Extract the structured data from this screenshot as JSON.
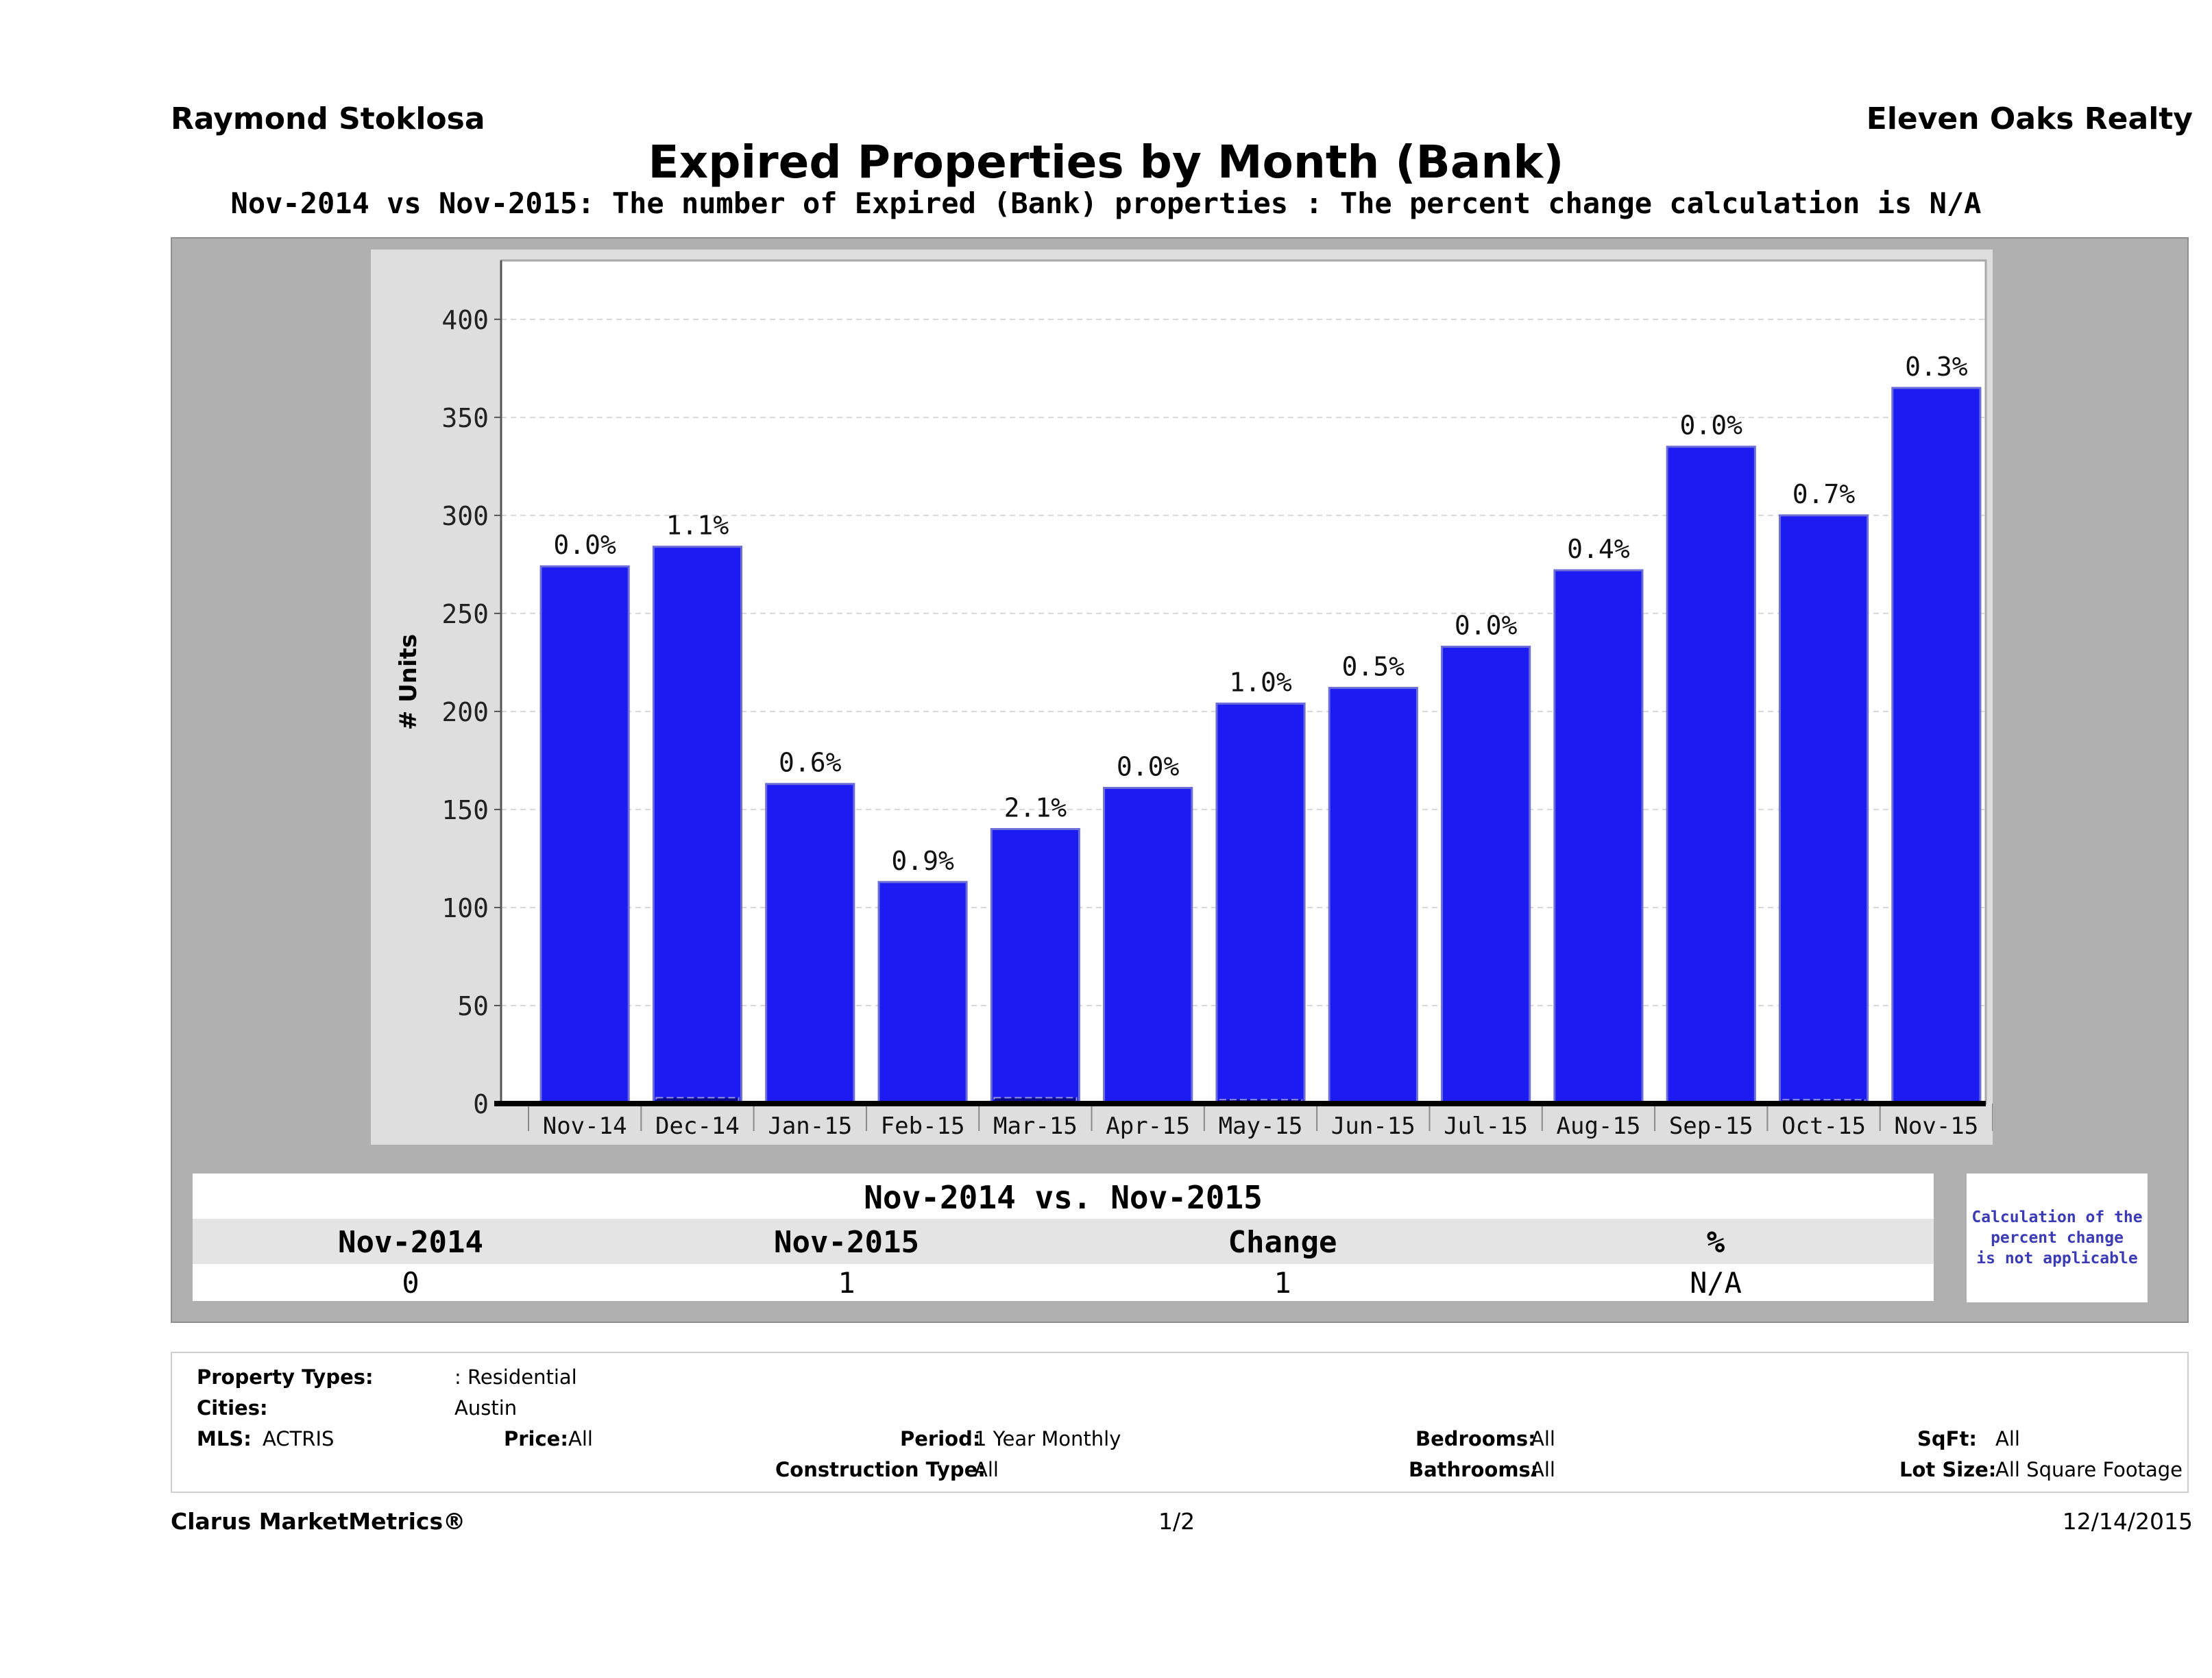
{
  "header": {
    "agent": "Raymond Stoklosa",
    "brokerage": "Eleven Oaks Realty",
    "title": "Expired Properties by Month (Bank)",
    "subtitle": "Nov-2014 vs Nov-2015: The number of Expired (Bank)  properties :  The percent change calculation is N/A"
  },
  "colors": {
    "bar": "#1c1cf2",
    "bar_dark": "#0b0b8a",
    "panel": "#b0b0b0",
    "plot_bg": "#ffffff",
    "frame_bg": "#dedede",
    "note_text": "#3b3bb5"
  },
  "chart_data": {
    "type": "bar",
    "title": "",
    "xlabel": "",
    "ylabel": "# Units",
    "ylim": [
      0,
      430
    ],
    "yticks": [
      0,
      50,
      100,
      150,
      200,
      250,
      300,
      350,
      400
    ],
    "grid": true,
    "categories": [
      "Nov-14",
      "Dec-14",
      "Jan-15",
      "Feb-15",
      "Mar-15",
      "Apr-15",
      "May-15",
      "Jun-15",
      "Jul-15",
      "Aug-15",
      "Sep-15",
      "Oct-15",
      "Nov-15"
    ],
    "series": [
      {
        "values": [
          274,
          284,
          163,
          113,
          140,
          161,
          204,
          212,
          233,
          272,
          335,
          300,
          365
        ]
      }
    ],
    "overlay_values": [
      0,
      3,
      1,
      1,
      3,
      0,
      2,
      1,
      0,
      1,
      0,
      2,
      1
    ],
    "data_labels": [
      "0.0%",
      "1.1%",
      "0.6%",
      "0.9%",
      "2.1%",
      "0.0%",
      "1.0%",
      "0.5%",
      "0.0%",
      "0.4%",
      "0.0%",
      "0.7%",
      "0.3%"
    ]
  },
  "comparison": {
    "title": "Nov-2014 vs. Nov-2015",
    "headers": [
      "Nov-2014",
      "Nov-2015",
      "Change",
      "%"
    ],
    "values": [
      "0",
      "1",
      "1",
      "N/A"
    ],
    "note_lines": [
      "Calculation of the",
      "percent change",
      "is not applicable"
    ]
  },
  "criteria": {
    "property_types_label": "Property Types:",
    "property_types_value": ": Residential",
    "cities_label": "Cities:",
    "cities_value": "Austin",
    "mls_label": "MLS:",
    "mls_value": "ACTRIS",
    "price_label": "Price:",
    "price_value": "All",
    "period_label": "Period:",
    "period_value": "1 Year Monthly",
    "construction_label": "Construction Type:",
    "construction_value": "All",
    "bedrooms_label": "Bedrooms:",
    "bedrooms_value": "All",
    "bathrooms_label": "Bathrooms:",
    "bathrooms_value": "All",
    "sqft_label": "SqFt:",
    "sqft_value": "All",
    "lot_label": "Lot Size:",
    "lot_value": "All Square Footage"
  },
  "footer": {
    "brand": "Clarus MarketMetrics®",
    "page": "1/2",
    "date": "12/14/2015"
  }
}
